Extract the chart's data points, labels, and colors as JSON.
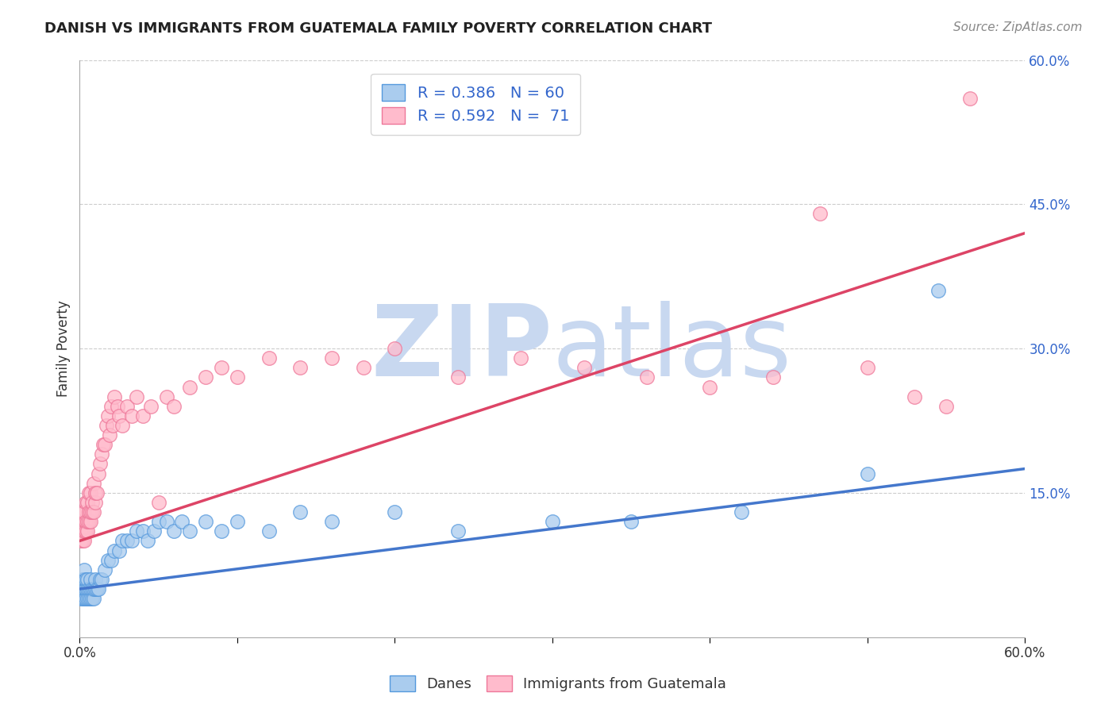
{
  "title": "DANISH VS IMMIGRANTS FROM GUATEMALA FAMILY POVERTY CORRELATION CHART",
  "source": "Source: ZipAtlas.com",
  "ylabel": "Family Poverty",
  "xlim": [
    0.0,
    0.6
  ],
  "ylim": [
    0.0,
    0.6
  ],
  "xticks": [
    0.0,
    0.1,
    0.2,
    0.3,
    0.4,
    0.5,
    0.6
  ],
  "xticklabels": [
    "0.0%",
    "",
    "",
    "",
    "",
    "",
    "60.0%"
  ],
  "yticks_right": [
    0.15,
    0.3,
    0.45,
    0.6
  ],
  "ytick_labels_right": [
    "15.0%",
    "30.0%",
    "45.0%",
    "60.0%"
  ],
  "danes_color": "#aaccee",
  "danes_edge_color": "#5599dd",
  "guatemala_color": "#ffbbcc",
  "guatemala_edge_color": "#ee7799",
  "danes_line_color": "#4477cc",
  "guatemala_line_color": "#dd4466",
  "danes_R": 0.386,
  "danes_N": 60,
  "guatemala_R": 0.592,
  "guatemala_N": 71,
  "watermark_zip": "ZIP",
  "watermark_atlas": "atlas",
  "watermark_color": "#c8d8f0",
  "danes_scatter_x": [
    0.001,
    0.001,
    0.002,
    0.002,
    0.002,
    0.003,
    0.003,
    0.003,
    0.003,
    0.004,
    0.004,
    0.004,
    0.005,
    0.005,
    0.005,
    0.006,
    0.006,
    0.007,
    0.007,
    0.007,
    0.008,
    0.008,
    0.009,
    0.009,
    0.01,
    0.01,
    0.011,
    0.012,
    0.013,
    0.014,
    0.016,
    0.018,
    0.02,
    0.022,
    0.025,
    0.027,
    0.03,
    0.033,
    0.036,
    0.04,
    0.043,
    0.047,
    0.05,
    0.055,
    0.06,
    0.065,
    0.07,
    0.08,
    0.09,
    0.1,
    0.12,
    0.14,
    0.16,
    0.2,
    0.24,
    0.3,
    0.35,
    0.42,
    0.5,
    0.545
  ],
  "danes_scatter_y": [
    0.04,
    0.05,
    0.04,
    0.05,
    0.06,
    0.04,
    0.05,
    0.06,
    0.07,
    0.04,
    0.05,
    0.06,
    0.04,
    0.05,
    0.06,
    0.04,
    0.05,
    0.04,
    0.05,
    0.06,
    0.04,
    0.05,
    0.04,
    0.05,
    0.05,
    0.06,
    0.05,
    0.05,
    0.06,
    0.06,
    0.07,
    0.08,
    0.08,
    0.09,
    0.09,
    0.1,
    0.1,
    0.1,
    0.11,
    0.11,
    0.1,
    0.11,
    0.12,
    0.12,
    0.11,
    0.12,
    0.11,
    0.12,
    0.11,
    0.12,
    0.11,
    0.13,
    0.12,
    0.13,
    0.11,
    0.12,
    0.12,
    0.13,
    0.17,
    0.36
  ],
  "guatemala_scatter_x": [
    0.001,
    0.001,
    0.001,
    0.002,
    0.002,
    0.002,
    0.002,
    0.003,
    0.003,
    0.003,
    0.004,
    0.004,
    0.004,
    0.005,
    0.005,
    0.005,
    0.006,
    0.006,
    0.006,
    0.007,
    0.007,
    0.007,
    0.008,
    0.008,
    0.009,
    0.009,
    0.01,
    0.01,
    0.011,
    0.012,
    0.013,
    0.014,
    0.015,
    0.016,
    0.017,
    0.018,
    0.019,
    0.02,
    0.021,
    0.022,
    0.024,
    0.025,
    0.027,
    0.03,
    0.033,
    0.036,
    0.04,
    0.045,
    0.05,
    0.055,
    0.06,
    0.07,
    0.08,
    0.09,
    0.1,
    0.12,
    0.14,
    0.16,
    0.18,
    0.2,
    0.24,
    0.28,
    0.32,
    0.36,
    0.4,
    0.44,
    0.47,
    0.5,
    0.53,
    0.55,
    0.565
  ],
  "guatemala_scatter_y": [
    0.1,
    0.11,
    0.12,
    0.1,
    0.11,
    0.12,
    0.13,
    0.1,
    0.11,
    0.13,
    0.11,
    0.12,
    0.14,
    0.11,
    0.12,
    0.14,
    0.12,
    0.13,
    0.15,
    0.12,
    0.13,
    0.15,
    0.13,
    0.14,
    0.13,
    0.16,
    0.14,
    0.15,
    0.15,
    0.17,
    0.18,
    0.19,
    0.2,
    0.2,
    0.22,
    0.23,
    0.21,
    0.24,
    0.22,
    0.25,
    0.24,
    0.23,
    0.22,
    0.24,
    0.23,
    0.25,
    0.23,
    0.24,
    0.14,
    0.25,
    0.24,
    0.26,
    0.27,
    0.28,
    0.27,
    0.29,
    0.28,
    0.29,
    0.28,
    0.3,
    0.27,
    0.29,
    0.28,
    0.27,
    0.26,
    0.27,
    0.44,
    0.28,
    0.25,
    0.24,
    0.56
  ],
  "danes_line_x": [
    0.0,
    0.6
  ],
  "danes_line_y": [
    0.05,
    0.175
  ],
  "guatemala_line_x": [
    0.0,
    0.6
  ],
  "guatemala_line_y": [
    0.1,
    0.42
  ],
  "background_color": "#ffffff",
  "grid_color": "#cccccc",
  "title_color": "#222222",
  "axis_label_color": "#3366cc"
}
